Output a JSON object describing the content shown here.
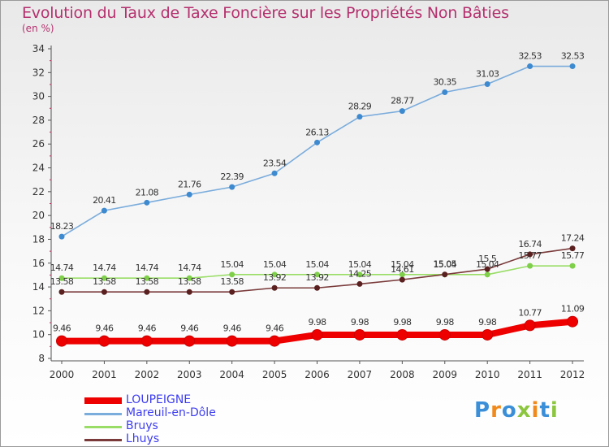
{
  "chart_data": {
    "type": "line",
    "title": "Evolution du Taux de Taxe Foncière sur les Propriétés Non Bâties",
    "ylabel": "(en %)",
    "xlabel": "",
    "ylim": [
      8,
      34
    ],
    "yticks": [
      "8",
      "10",
      "12",
      "14",
      "16",
      "18",
      "20",
      "22",
      "24",
      "26",
      "28",
      "30",
      "32",
      "34"
    ],
    "x": [
      "2000",
      "2001",
      "2002",
      "2003",
      "2004",
      "2005",
      "2006",
      "2007",
      "2008",
      "2009",
      "2010",
      "2011",
      "2012"
    ],
    "grid": false,
    "legend_position": "bottom-left",
    "series": [
      {
        "name": "LOUPEIGNE",
        "color": "#ee0000",
        "emphasis": true,
        "values": [
          9.46,
          9.46,
          9.46,
          9.46,
          9.46,
          9.46,
          9.98,
          9.98,
          9.98,
          9.98,
          9.98,
          10.77,
          11.09
        ],
        "labels": [
          "9.46",
          "9.46",
          "9.46",
          "9.46",
          "9.46",
          "9.46",
          "9.98",
          "9.98",
          "9.98",
          "9.98",
          "9.98",
          "10.77",
          "11.09"
        ]
      },
      {
        "name": "Mareuil-en-Dôle",
        "color": "#7aacdc",
        "emphasis": false,
        "values": [
          18.23,
          20.41,
          21.08,
          21.76,
          22.39,
          23.54,
          26.13,
          28.29,
          28.77,
          30.35,
          31.03,
          32.53,
          32.53
        ],
        "labels": [
          "18.23",
          "20.41",
          "21.08",
          "21.76",
          "22.39",
          "23.54",
          "26.13",
          "28.29",
          "28.77",
          "30.35",
          "31.03",
          "32.53",
          "32.53"
        ]
      },
      {
        "name": "Bruys",
        "color": "#99dd66",
        "emphasis": false,
        "values": [
          14.74,
          14.74,
          14.74,
          14.74,
          15.04,
          15.04,
          15.04,
          15.04,
          15.04,
          15.04,
          15.04,
          15.77,
          15.77
        ],
        "labels": [
          "14.74",
          "14.74",
          "14.74",
          "14.74",
          "15.04",
          "15.04",
          "15.04",
          "15.04",
          "15.04",
          "15.04",
          "15.04",
          "15.77",
          "15.77"
        ]
      },
      {
        "name": "Lhuys",
        "color": "#7a3a3a",
        "emphasis": false,
        "values": [
          13.58,
          13.58,
          13.58,
          13.58,
          13.58,
          13.92,
          13.92,
          14.25,
          14.61,
          15.05,
          15.5,
          16.74,
          17.24
        ],
        "labels": [
          "13.58",
          "13.58",
          "13.58",
          "13.58",
          "13.58",
          "13.92",
          "13.92",
          "14.25",
          "14.61",
          "15.05",
          "15.5",
          "16.74",
          "17.24"
        ]
      }
    ]
  },
  "brand": {
    "logo": "Proxiti"
  }
}
